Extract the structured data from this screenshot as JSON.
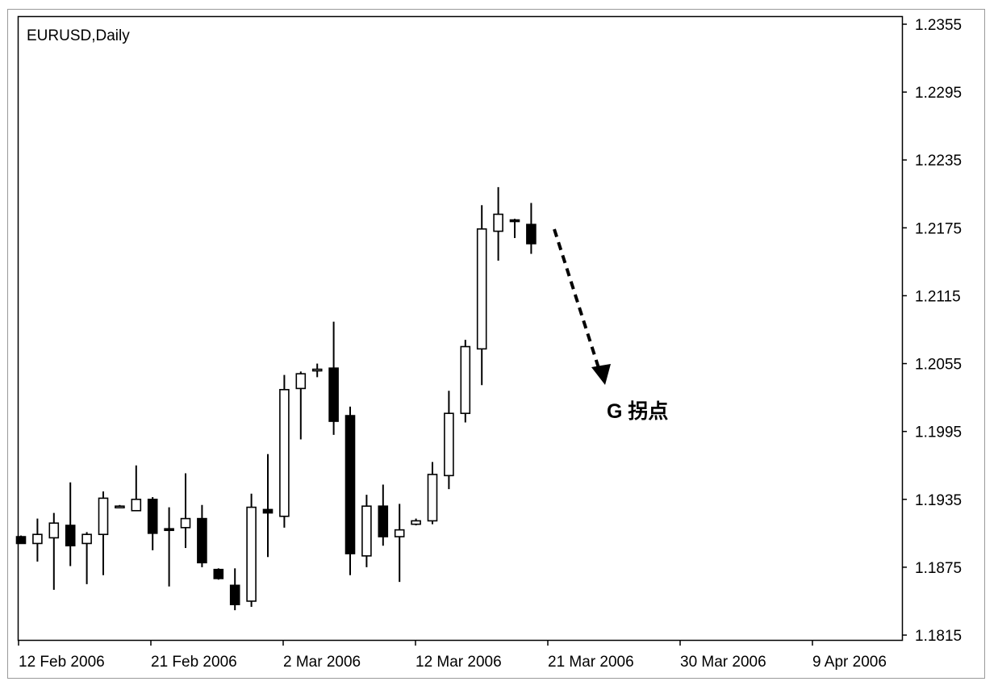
{
  "chart_data": {
    "type": "candlestick",
    "title": "EURUSD,Daily",
    "y_ticks": [
      "1.2355",
      "1.2295",
      "1.2235",
      "1.2175",
      "1.2115",
      "1.2055",
      "1.1995",
      "1.1935",
      "1.1875",
      "1.1815"
    ],
    "x_ticks": [
      "12 Feb 2006",
      "21 Feb 2006",
      "2 Mar 2006",
      "12 Mar 2006",
      "21 Mar 2006",
      "30 Mar 2006",
      "9 Apr 2006"
    ],
    "ylim": [
      1.1815,
      1.2355
    ],
    "grid": false,
    "annotation": {
      "text": "G 拐点",
      "arrow": "dashed-down-right"
    },
    "candles": [
      {
        "open": 1.1902,
        "high": 1.1903,
        "low": 1.1898,
        "close": 1.1896
      },
      {
        "open": 1.1896,
        "high": 1.1918,
        "low": 1.188,
        "close": 1.1904
      },
      {
        "open": 1.1901,
        "high": 1.1923,
        "low": 1.1855,
        "close": 1.1914
      },
      {
        "open": 1.1912,
        "high": 1.195,
        "low": 1.1876,
        "close": 1.1894
      },
      {
        "open": 1.1896,
        "high": 1.1906,
        "low": 1.186,
        "close": 1.1904
      },
      {
        "open": 1.1904,
        "high": 1.1942,
        "low": 1.1868,
        "close": 1.1936
      },
      {
        "open": 1.1928,
        "high": 1.193,
        "low": 1.1927,
        "close": 1.1929
      },
      {
        "open": 1.1925,
        "high": 1.1965,
        "low": 1.1925,
        "close": 1.1935
      },
      {
        "open": 1.1935,
        "high": 1.1937,
        "low": 1.189,
        "close": 1.1905
      },
      {
        "open": 1.1909,
        "high": 1.1928,
        "low": 1.1858,
        "close": 1.1908
      },
      {
        "open": 1.191,
        "high": 1.1958,
        "low": 1.1892,
        "close": 1.1918
      },
      {
        "open": 1.1918,
        "high": 1.193,
        "low": 1.1875,
        "close": 1.1879
      },
      {
        "open": 1.1873,
        "high": 1.1874,
        "low": 1.1864,
        "close": 1.1865
      },
      {
        "open": 1.1859,
        "high": 1.1874,
        "low": 1.1837,
        "close": 1.1842
      },
      {
        "open": 1.1845,
        "high": 1.194,
        "low": 1.184,
        "close": 1.1928
      },
      {
        "open": 1.1926,
        "high": 1.1975,
        "low": 1.1884,
        "close": 1.1923
      },
      {
        "open": 1.192,
        "high": 1.2045,
        "low": 1.191,
        "close": 1.2032
      },
      {
        "open": 1.2033,
        "high": 1.2048,
        "low": 1.1988,
        "close": 1.2046
      },
      {
        "open": 1.205,
        "high": 1.2055,
        "low": 1.2043,
        "close": 1.205
      },
      {
        "open": 1.2051,
        "high": 1.2092,
        "low": 1.1992,
        "close": 1.2004
      },
      {
        "open": 1.2009,
        "high": 1.2017,
        "low": 1.1868,
        "close": 1.1887
      },
      {
        "open": 1.1885,
        "high": 1.1939,
        "low": 1.1875,
        "close": 1.1929
      },
      {
        "open": 1.1929,
        "high": 1.1948,
        "low": 1.1894,
        "close": 1.1902
      },
      {
        "open": 1.1902,
        "high": 1.1931,
        "low": 1.1862,
        "close": 1.1908
      },
      {
        "open": 1.1913,
        "high": 1.1918,
        "low": 1.1912,
        "close": 1.1916
      },
      {
        "open": 1.1916,
        "high": 1.1968,
        "low": 1.1913,
        "close": 1.1957
      },
      {
        "open": 1.1956,
        "high": 1.2031,
        "low": 1.1944,
        "close": 1.2011
      },
      {
        "open": 1.2011,
        "high": 1.2076,
        "low": 1.2003,
        "close": 1.207
      },
      {
        "open": 1.2068,
        "high": 1.2195,
        "low": 1.2036,
        "close": 1.2174
      },
      {
        "open": 1.2172,
        "high": 1.2211,
        "low": 1.2146,
        "close": 1.2187
      },
      {
        "open": 1.2182,
        "high": 1.2183,
        "low": 1.2166,
        "close": 1.2181
      },
      {
        "open": 1.2178,
        "high": 1.2197,
        "low": 1.2152,
        "close": 1.2161
      }
    ]
  }
}
